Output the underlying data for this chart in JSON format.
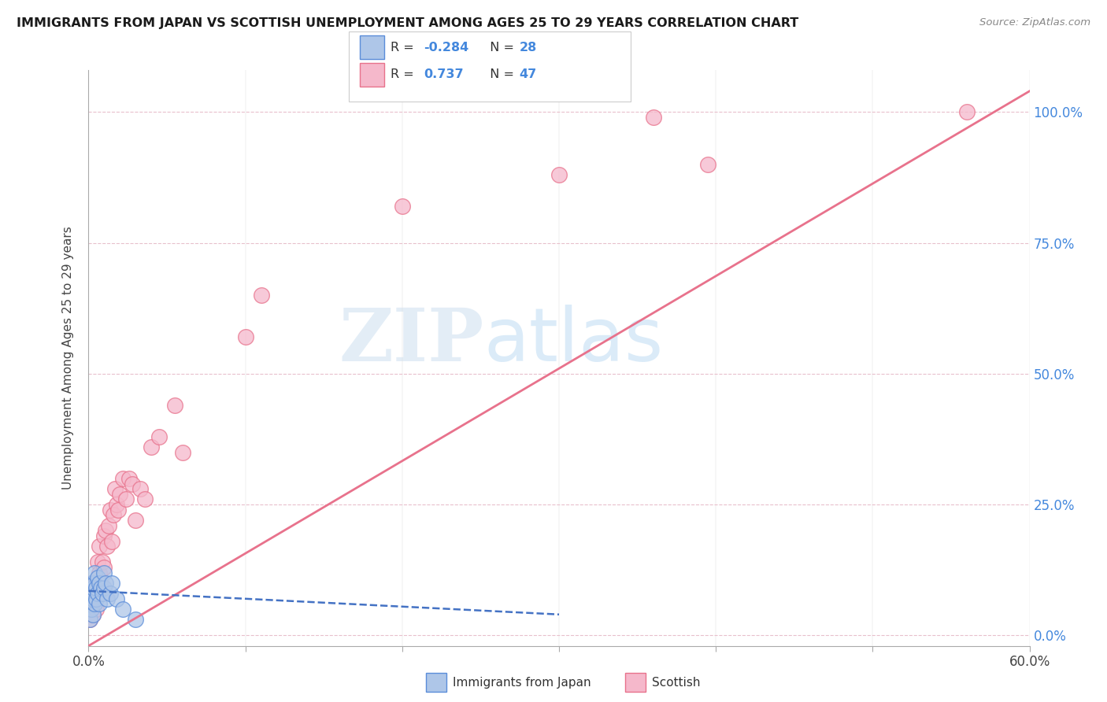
{
  "title": "IMMIGRANTS FROM JAPAN VS SCOTTISH UNEMPLOYMENT AMONG AGES 25 TO 29 YEARS CORRELATION CHART",
  "source": "Source: ZipAtlas.com",
  "ylabel": "Unemployment Among Ages 25 to 29 years",
  "xlim": [
    0.0,
    0.6
  ],
  "ylim": [
    -0.02,
    1.08
  ],
  "xticks": [
    0.0,
    0.1,
    0.2,
    0.3,
    0.4,
    0.5,
    0.6
  ],
  "xticklabels": [
    "0.0%",
    "",
    "",
    "",
    "",
    "",
    "60.0%"
  ],
  "yticks_right": [
    0.0,
    0.25,
    0.5,
    0.75,
    1.0
  ],
  "ytick_right_labels": [
    "0.0%",
    "25.0%",
    "50.0%",
    "75.0%",
    "100.0%"
  ],
  "R_japan": -0.284,
  "N_japan": 28,
  "R_scottish": 0.737,
  "N_scottish": 47,
  "color_japan_fill": "#aec6e8",
  "color_scottish_fill": "#f5b8cb",
  "color_japan_edge": "#5b8dd9",
  "color_scottish_edge": "#e8728c",
  "color_japan_line": "#4472c4",
  "color_scottish_line": "#e8728c",
  "watermark_zip": "ZIP",
  "watermark_atlas": "atlas",
  "scatter_japan_x": [
    0.001,
    0.001,
    0.002,
    0.002,
    0.002,
    0.003,
    0.003,
    0.003,
    0.004,
    0.004,
    0.004,
    0.005,
    0.005,
    0.006,
    0.006,
    0.007,
    0.007,
    0.008,
    0.009,
    0.01,
    0.01,
    0.011,
    0.012,
    0.014,
    0.015,
    0.018,
    0.022,
    0.03
  ],
  "scatter_japan_y": [
    0.03,
    0.06,
    0.05,
    0.08,
    0.1,
    0.04,
    0.07,
    0.09,
    0.06,
    0.1,
    0.12,
    0.07,
    0.09,
    0.08,
    0.11,
    0.06,
    0.1,
    0.09,
    0.08,
    0.09,
    0.12,
    0.1,
    0.07,
    0.08,
    0.1,
    0.07,
    0.05,
    0.03
  ],
  "scatter_scottish_x": [
    0.001,
    0.001,
    0.002,
    0.002,
    0.003,
    0.003,
    0.003,
    0.004,
    0.004,
    0.005,
    0.005,
    0.006,
    0.006,
    0.007,
    0.007,
    0.008,
    0.009,
    0.01,
    0.01,
    0.011,
    0.012,
    0.013,
    0.014,
    0.015,
    0.016,
    0.017,
    0.018,
    0.019,
    0.02,
    0.022,
    0.024,
    0.026,
    0.028,
    0.03,
    0.033,
    0.036,
    0.04,
    0.045,
    0.055,
    0.06,
    0.1,
    0.11,
    0.2,
    0.3,
    0.36,
    0.395,
    0.56
  ],
  "scatter_scottish_y": [
    0.03,
    0.06,
    0.05,
    0.09,
    0.04,
    0.07,
    0.1,
    0.06,
    0.09,
    0.05,
    0.1,
    0.08,
    0.14,
    0.12,
    0.17,
    0.1,
    0.14,
    0.13,
    0.19,
    0.2,
    0.17,
    0.21,
    0.24,
    0.18,
    0.23,
    0.28,
    0.25,
    0.24,
    0.27,
    0.3,
    0.26,
    0.3,
    0.29,
    0.22,
    0.28,
    0.26,
    0.36,
    0.38,
    0.44,
    0.35,
    0.57,
    0.65,
    0.82,
    0.88,
    0.99,
    0.9,
    1.0
  ],
  "sc_trend_x0": 0.0,
  "sc_trend_y0": -0.02,
  "sc_trend_x1": 0.6,
  "sc_trend_y1": 1.04,
  "jp_trend_x0": 0.0,
  "jp_trend_y0": 0.085,
  "jp_trend_x1": 0.3,
  "jp_trend_y1": 0.04
}
